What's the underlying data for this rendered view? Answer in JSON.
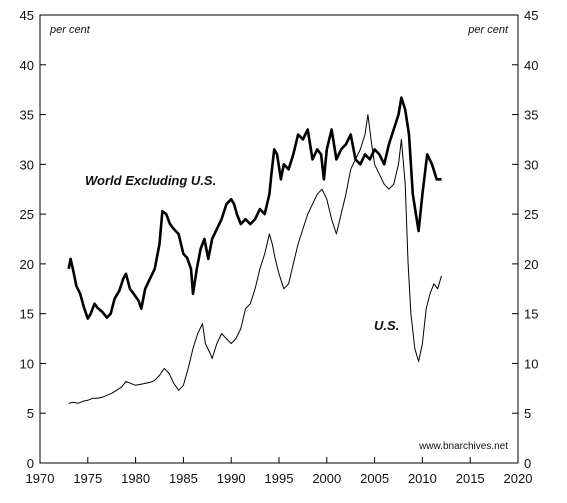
{
  "chart_data": {
    "type": "line",
    "title": "",
    "xlabel": "",
    "ylabel": "",
    "y_unit_left": "per cent",
    "y_unit_right": "per cent",
    "source": "www.bnarchives.net",
    "xlim": [
      1970,
      2020
    ],
    "ylim": [
      0,
      45
    ],
    "x_ticks": [
      "1970",
      "1975",
      "1980",
      "1985",
      "1990",
      "1995",
      "2000",
      "2005",
      "2010",
      "2015",
      "2020"
    ],
    "y_ticks": [
      "0",
      "5",
      "10",
      "15",
      "20",
      "25",
      "30",
      "35",
      "40",
      "45"
    ],
    "grid": false,
    "colors": {
      "lines": "#000000",
      "frame": "#000000"
    },
    "series": [
      {
        "name": "World Excluding U.S.",
        "style": "thick",
        "points": [
          [
            1973.0,
            19.5
          ],
          [
            1973.2,
            20.5
          ],
          [
            1973.5,
            19.2
          ],
          [
            1973.8,
            17.8
          ],
          [
            1974.2,
            17.0
          ],
          [
            1974.6,
            15.6
          ],
          [
            1975.0,
            14.5
          ],
          [
            1975.3,
            15.0
          ],
          [
            1975.7,
            16.0
          ],
          [
            1976.0,
            15.6
          ],
          [
            1976.5,
            15.2
          ],
          [
            1977.0,
            14.6
          ],
          [
            1977.4,
            15.0
          ],
          [
            1977.8,
            16.5
          ],
          [
            1978.3,
            17.3
          ],
          [
            1978.7,
            18.5
          ],
          [
            1979.0,
            19.0
          ],
          [
            1979.4,
            17.5
          ],
          [
            1979.8,
            17.0
          ],
          [
            1980.3,
            16.3
          ],
          [
            1980.6,
            15.5
          ],
          [
            1981.0,
            17.5
          ],
          [
            1981.5,
            18.5
          ],
          [
            1982.0,
            19.5
          ],
          [
            1982.5,
            22.0
          ],
          [
            1982.8,
            25.3
          ],
          [
            1983.2,
            25.0
          ],
          [
            1983.6,
            24.0
          ],
          [
            1984.0,
            23.5
          ],
          [
            1984.5,
            23.0
          ],
          [
            1985.0,
            21.0
          ],
          [
            1985.4,
            20.6
          ],
          [
            1985.8,
            19.5
          ],
          [
            1986.0,
            17.0
          ],
          [
            1986.4,
            19.5
          ],
          [
            1986.8,
            21.5
          ],
          [
            1987.2,
            22.5
          ],
          [
            1987.6,
            20.5
          ],
          [
            1988.0,
            22.5
          ],
          [
            1988.5,
            23.5
          ],
          [
            1989.0,
            24.5
          ],
          [
            1989.5,
            26.0
          ],
          [
            1990.0,
            26.5
          ],
          [
            1990.3,
            26.0
          ],
          [
            1990.6,
            25.0
          ],
          [
            1991.0,
            24.0
          ],
          [
            1991.5,
            24.5
          ],
          [
            1992.0,
            24.0
          ],
          [
            1992.5,
            24.5
          ],
          [
            1993.0,
            25.5
          ],
          [
            1993.5,
            25.0
          ],
          [
            1994.0,
            27.0
          ],
          [
            1994.2,
            29.0
          ],
          [
            1994.5,
            31.5
          ],
          [
            1994.8,
            31.0
          ],
          [
            1995.2,
            28.5
          ],
          [
            1995.5,
            30.0
          ],
          [
            1996.0,
            29.5
          ],
          [
            1996.5,
            31.0
          ],
          [
            1997.0,
            33.0
          ],
          [
            1997.5,
            32.5
          ],
          [
            1998.0,
            33.5
          ],
          [
            1998.5,
            30.5
          ],
          [
            1999.0,
            31.5
          ],
          [
            1999.4,
            31.0
          ],
          [
            1999.7,
            28.5
          ],
          [
            2000.0,
            31.5
          ],
          [
            2000.5,
            33.5
          ],
          [
            2001.0,
            30.5
          ],
          [
            2001.5,
            31.5
          ],
          [
            2002.0,
            32.0
          ],
          [
            2002.5,
            33.0
          ],
          [
            2003.0,
            30.5
          ],
          [
            2003.5,
            30.0
          ],
          [
            2004.0,
            31.0
          ],
          [
            2004.5,
            30.5
          ],
          [
            2005.0,
            31.5
          ],
          [
            2005.5,
            31.0
          ],
          [
            2006.0,
            30.0
          ],
          [
            2006.5,
            32.0
          ],
          [
            2007.0,
            33.5
          ],
          [
            2007.5,
            35.0
          ],
          [
            2007.8,
            36.7
          ],
          [
            2008.2,
            35.5
          ],
          [
            2008.6,
            33.0
          ],
          [
            2009.0,
            27.0
          ],
          [
            2009.4,
            24.5
          ],
          [
            2009.6,
            23.3
          ],
          [
            2010.0,
            27.0
          ],
          [
            2010.5,
            31.0
          ],
          [
            2011.0,
            30.0
          ],
          [
            2011.5,
            28.5
          ],
          [
            2012.0,
            28.5
          ]
        ]
      },
      {
        "name": "U.S.",
        "style": "thin",
        "points": [
          [
            1973.0,
            6.0
          ],
          [
            1973.5,
            6.1
          ],
          [
            1974.0,
            6.0
          ],
          [
            1974.5,
            6.2
          ],
          [
            1975.0,
            6.3
          ],
          [
            1975.5,
            6.5
          ],
          [
            1976.0,
            6.5
          ],
          [
            1976.5,
            6.6
          ],
          [
            1977.0,
            6.8
          ],
          [
            1977.5,
            7.0
          ],
          [
            1978.0,
            7.3
          ],
          [
            1978.5,
            7.6
          ],
          [
            1979.0,
            8.2
          ],
          [
            1979.5,
            8.0
          ],
          [
            1980.0,
            7.8
          ],
          [
            1980.5,
            7.9
          ],
          [
            1981.0,
            8.0
          ],
          [
            1981.5,
            8.1
          ],
          [
            1982.0,
            8.3
          ],
          [
            1982.5,
            8.8
          ],
          [
            1983.0,
            9.5
          ],
          [
            1983.5,
            9.0
          ],
          [
            1984.0,
            8.0
          ],
          [
            1984.5,
            7.3
          ],
          [
            1985.0,
            7.8
          ],
          [
            1985.5,
            9.5
          ],
          [
            1986.0,
            11.5
          ],
          [
            1986.5,
            13.0
          ],
          [
            1987.0,
            14.0
          ],
          [
            1987.3,
            12.0
          ],
          [
            1987.8,
            11.0
          ],
          [
            1988.0,
            10.5
          ],
          [
            1988.5,
            12.0
          ],
          [
            1989.0,
            13.0
          ],
          [
            1989.5,
            12.5
          ],
          [
            1990.0,
            12.0
          ],
          [
            1990.5,
            12.5
          ],
          [
            1991.0,
            13.5
          ],
          [
            1991.5,
            15.5
          ],
          [
            1992.0,
            16.0
          ],
          [
            1992.5,
            17.5
          ],
          [
            1993.0,
            19.5
          ],
          [
            1993.5,
            21.0
          ],
          [
            1994.0,
            23.0
          ],
          [
            1994.3,
            22.0
          ],
          [
            1994.6,
            20.5
          ],
          [
            1995.0,
            19.0
          ],
          [
            1995.5,
            17.5
          ],
          [
            1996.0,
            18.0
          ],
          [
            1996.5,
            20.0
          ],
          [
            1997.0,
            22.0
          ],
          [
            1997.5,
            23.5
          ],
          [
            1998.0,
            25.0
          ],
          [
            1998.5,
            26.0
          ],
          [
            1999.0,
            27.0
          ],
          [
            1999.5,
            27.5
          ],
          [
            2000.0,
            26.5
          ],
          [
            2000.5,
            24.5
          ],
          [
            2001.0,
            23.0
          ],
          [
            2001.5,
            25.0
          ],
          [
            2002.0,
            27.0
          ],
          [
            2002.5,
            29.5
          ],
          [
            2003.0,
            30.5
          ],
          [
            2003.5,
            31.5
          ],
          [
            2004.0,
            33.0
          ],
          [
            2004.3,
            35.0
          ],
          [
            2004.7,
            32.0
          ],
          [
            2005.0,
            30.0
          ],
          [
            2005.5,
            29.0
          ],
          [
            2006.0,
            28.0
          ],
          [
            2006.5,
            27.5
          ],
          [
            2007.0,
            28.0
          ],
          [
            2007.5,
            30.0
          ],
          [
            2007.8,
            32.5
          ],
          [
            2008.2,
            28.0
          ],
          [
            2008.5,
            20.0
          ],
          [
            2008.8,
            15.0
          ],
          [
            2009.2,
            11.5
          ],
          [
            2009.6,
            10.2
          ],
          [
            2010.0,
            12.0
          ],
          [
            2010.4,
            15.5
          ],
          [
            2010.8,
            17.0
          ],
          [
            2011.2,
            18.0
          ],
          [
            2011.6,
            17.5
          ],
          [
            2012.0,
            18.8
          ]
        ]
      }
    ]
  }
}
